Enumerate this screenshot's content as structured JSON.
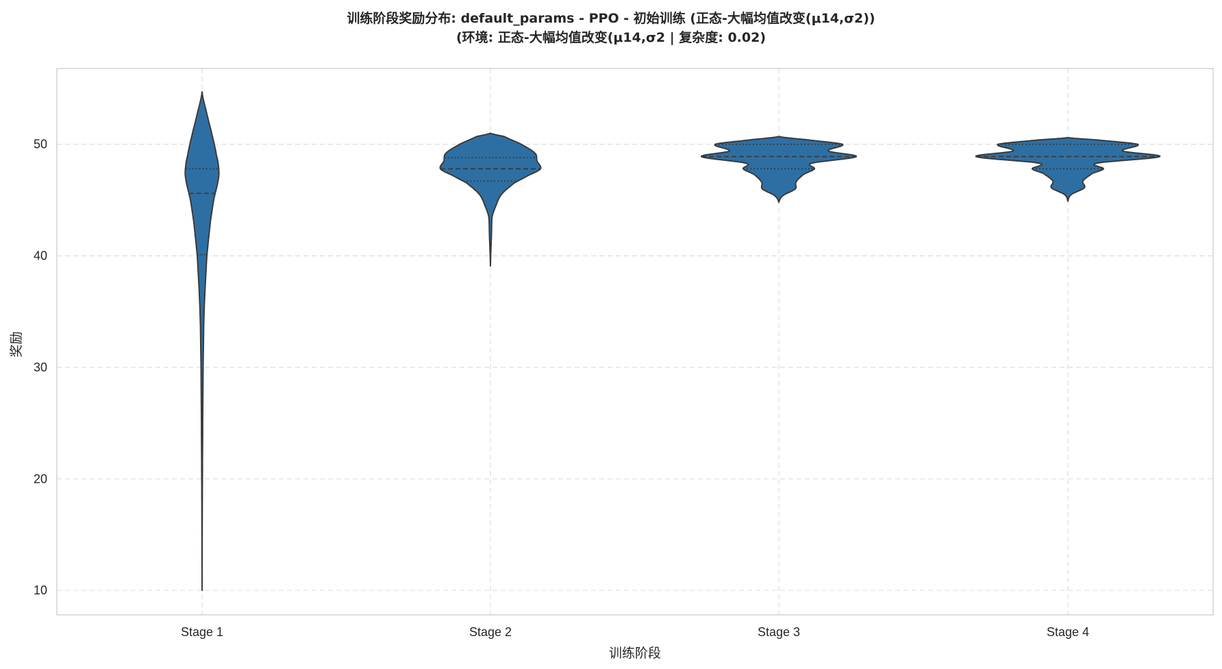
{
  "chart_data": {
    "type": "violin",
    "title": "训练阶段奖励分布: default_params - PPO - 初始训练 (正态-大幅均值改变(μ14,σ2))",
    "subtitle": "(环境: 正态-大幅均值改变(μ14,σ2 | 复杂度: 0.02)",
    "xlabel": "训练阶段",
    "ylabel": "奖励",
    "categories": [
      "Stage 1",
      "Stage 2",
      "Stage 3",
      "Stage 4"
    ],
    "ylim": [
      7.8,
      56.8
    ],
    "yticks": [
      10,
      20,
      30,
      40,
      50
    ],
    "grid": true,
    "color": "#2e6fa3",
    "edge_color": "#3a3a3a",
    "violins": [
      {
        "category": "Stage 1",
        "min": 10.0,
        "max": 54.7,
        "q1": 40.1,
        "median": 45.6,
        "q3": 47.8,
        "profile": [
          [
            10.0,
            0.0
          ],
          [
            20,
            0.5
          ],
          [
            30,
            1.5
          ],
          [
            35,
            3
          ],
          [
            40,
            7
          ],
          [
            43,
            12
          ],
          [
            45,
            17
          ],
          [
            47,
            24
          ],
          [
            48,
            24
          ],
          [
            49,
            21
          ],
          [
            51,
            14
          ],
          [
            53,
            6
          ],
          [
            54.7,
            0.0
          ]
        ]
      },
      {
        "category": "Stage 2",
        "min": 39.1,
        "max": 51.0,
        "q1": 46.7,
        "median": 47.8,
        "q3": 48.8,
        "profile": [
          [
            39.1,
            0.0
          ],
          [
            42,
            1.5
          ],
          [
            43.5,
            2.5
          ],
          [
            44.5,
            8
          ],
          [
            45.5,
            16
          ],
          [
            46.5,
            34
          ],
          [
            47.2,
            55
          ],
          [
            47.8,
            73
          ],
          [
            48.5,
            68
          ],
          [
            49.2,
            65
          ],
          [
            50,
            45
          ],
          [
            50.7,
            20
          ],
          [
            51.0,
            0.0
          ]
        ]
      },
      {
        "category": "Stage 3",
        "min": 44.8,
        "max": 50.7,
        "q1": 47.8,
        "median": 48.9,
        "q3": 50.0,
        "profile": [
          [
            44.8,
            0.0
          ],
          [
            45.4,
            6
          ],
          [
            46.0,
            24
          ],
          [
            46.6,
            25
          ],
          [
            47.3,
            36
          ],
          [
            47.8,
            52
          ],
          [
            48.3,
            48
          ],
          [
            48.9,
            113
          ],
          [
            49.4,
            72
          ],
          [
            50.0,
            93
          ],
          [
            50.4,
            42
          ],
          [
            50.7,
            0.0
          ]
        ]
      },
      {
        "category": "Stage 4",
        "min": 44.9,
        "max": 50.6,
        "q1": 47.8,
        "median": 48.9,
        "q3": 50.0,
        "profile": [
          [
            44.9,
            0.0
          ],
          [
            45.5,
            5
          ],
          [
            46.1,
            24
          ],
          [
            46.7,
            22
          ],
          [
            47.4,
            36
          ],
          [
            47.8,
            52
          ],
          [
            48.3,
            42
          ],
          [
            48.9,
            134
          ],
          [
            49.4,
            80
          ],
          [
            50.0,
            102
          ],
          [
            50.4,
            42
          ],
          [
            50.6,
            0.0
          ]
        ]
      }
    ]
  }
}
